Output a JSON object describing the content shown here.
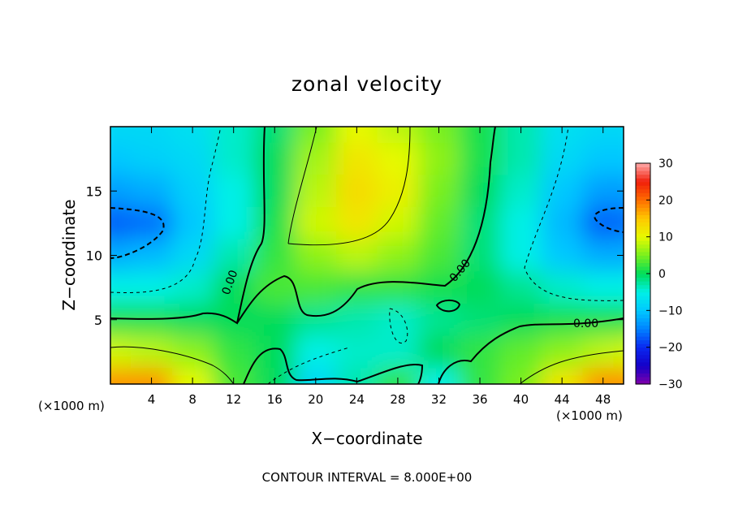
{
  "chart_data": {
    "type": "heatmap",
    "title": "zonal velocity",
    "xlabel": "X−coordinate",
    "ylabel": "Z−coordinate",
    "x_unit_left": "(×1000 m)",
    "x_unit_right": "(×1000 m)",
    "footer": "CONTOUR INTERVAL = 8.000E+00",
    "xlim": [
      0,
      50
    ],
    "ylim": [
      0,
      20
    ],
    "x_ticks": [
      4,
      8,
      12,
      16,
      20,
      24,
      28,
      32,
      36,
      40,
      44,
      48
    ],
    "y_ticks": [
      5,
      10,
      15
    ],
    "colorbar": {
      "min": -30,
      "max": 30,
      "ticks": [
        30,
        20,
        10,
        0,
        -10,
        -20,
        -30
      ],
      "tick_labels": [
        "30",
        "20",
        "10",
        "0",
        "−10",
        "−20",
        "−30"
      ]
    },
    "contour_labels": [
      "0.00",
      "0.00",
      "0.00"
    ],
    "field": {
      "rows_top_to_bottom": true,
      "x": [
        0,
        4,
        8,
        12,
        16,
        20,
        24,
        28,
        32,
        36,
        40,
        44,
        48,
        50
      ],
      "z": [
        20,
        17.5,
        15,
        12.5,
        10,
        7.5,
        5,
        2.5,
        0
      ],
      "values": [
        [
          -8,
          -8,
          -7,
          -4,
          -1,
          5,
          10,
          8,
          5,
          1,
          -3,
          -7,
          -8,
          -8
        ],
        [
          -10,
          -9,
          -8,
          -4,
          0,
          7,
          12,
          10,
          6,
          1,
          -3,
          -8,
          -10,
          -10
        ],
        [
          -13,
          -12,
          -9,
          -5,
          0,
          8,
          13,
          11,
          5,
          0,
          -4,
          -10,
          -13,
          -13
        ],
        [
          -17,
          -16,
          -10,
          -5,
          1,
          9,
          12,
          9,
          4,
          -1,
          -5,
          -11,
          -17,
          -16
        ],
        [
          -12,
          -11,
          -8,
          -3,
          2,
          6,
          8,
          6,
          3,
          -1,
          -5,
          -10,
          -12,
          -12
        ],
        [
          -5,
          -5,
          -4,
          0,
          3,
          3,
          2,
          2,
          1,
          0,
          -2,
          -4,
          -5,
          -5
        ],
        [
          1,
          1,
          0,
          0,
          0,
          -2,
          -3,
          -4,
          -2,
          -1,
          0,
          1,
          1,
          1
        ],
        [
          9,
          8,
          6,
          2,
          0,
          -5,
          -4,
          -4,
          0,
          2,
          4,
          6,
          8,
          9
        ],
        [
          18,
          18,
          10,
          3,
          0,
          -8,
          -3,
          2,
          -5,
          2,
          5,
          12,
          18,
          18
        ]
      ]
    }
  }
}
